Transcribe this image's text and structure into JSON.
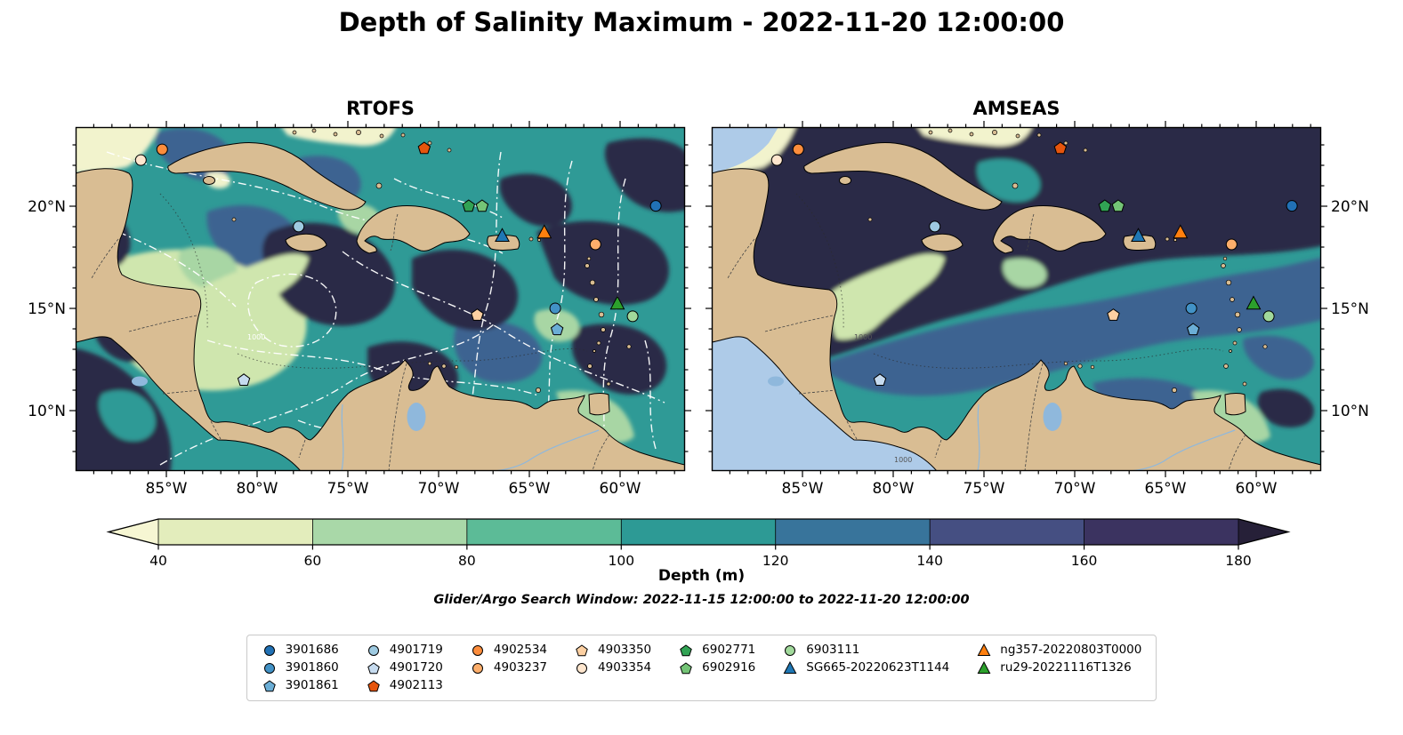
{
  "title": "Depth of Salinity Maximum - 2022-11-20 12:00:00",
  "subtitle": "Glider/Argo Search Window: 2022-11-15 12:00:00 to 2022-11-20 12:00:00",
  "panels": [
    {
      "title": "RTOFS"
    },
    {
      "title": "AMSEAS"
    }
  ],
  "axes": {
    "lon_tick_labels": [
      "85°W",
      "80°W",
      "75°W",
      "70°W",
      "65°W",
      "60°W"
    ],
    "lat_tick_labels": [
      "20°N",
      "15°N",
      "10°N"
    ]
  },
  "colorbar": {
    "label": "Depth (m)",
    "ticks": [
      "40",
      "60",
      "80",
      "100",
      "120",
      "140",
      "160",
      "180"
    ],
    "under_color": "#f6f6d3",
    "segment_colors": [
      "#e3edbc",
      "#a9d8a8",
      "#5cbb97",
      "#2d9a95",
      "#38749b",
      "#454f82",
      "#3b3360"
    ],
    "over_color": "#262038"
  },
  "contour_label": "1000",
  "legend": {
    "items": [
      {
        "label": "3901686",
        "shape": "circle",
        "color": "#2171b5"
      },
      {
        "label": "3901860",
        "shape": "circle",
        "color": "#4292c6"
      },
      {
        "label": "3901861",
        "shape": "pentagon",
        "color": "#6baed6"
      },
      {
        "label": "4901719",
        "shape": "circle",
        "color": "#9ecae1"
      },
      {
        "label": "4901720",
        "shape": "pentagon",
        "color": "#c6dbef"
      },
      {
        "label": "4902113",
        "shape": "pentagon",
        "color": "#e6550d"
      },
      {
        "label": "4902534",
        "shape": "circle",
        "color": "#fd8d3c"
      },
      {
        "label": "4903237",
        "shape": "circle",
        "color": "#fdae6b"
      },
      {
        "label": "4903350",
        "shape": "pentagon",
        "color": "#fdd0a2"
      },
      {
        "label": "4903354",
        "shape": "circle",
        "color": "#fee6ce"
      },
      {
        "label": "6902771",
        "shape": "pentagon",
        "color": "#31a354"
      },
      {
        "label": "6902916",
        "shape": "pentagon",
        "color": "#74c476"
      },
      {
        "label": "6903111",
        "shape": "circle",
        "color": "#a1d99b"
      },
      {
        "label": "SG665-20220623T1144",
        "shape": "triangle",
        "color": "#1f77b4"
      },
      {
        "label": "ng357-20220803T0000",
        "shape": "triangle",
        "color": "#ff7f0e"
      },
      {
        "label": "ru29-20221116T1326",
        "shape": "triangle",
        "color": "#2ca02c"
      }
    ],
    "column_layout": [
      [
        0,
        1,
        2
      ],
      [
        3,
        4,
        5
      ],
      [
        6,
        7
      ],
      [
        8,
        9
      ],
      [
        10,
        11
      ],
      [
        12,
        13
      ],
      [
        14,
        15
      ]
    ]
  },
  "markers": [
    {
      "id": "4903354",
      "fx": 0.107,
      "fy": 0.096
    },
    {
      "id": "4902534",
      "fx": 0.142,
      "fy": 0.065
    },
    {
      "id": "4902113",
      "fx": 0.572,
      "fy": 0.062
    },
    {
      "id": "6902771",
      "fx": 0.645,
      "fy": 0.23
    },
    {
      "id": "6902916",
      "fx": 0.667,
      "fy": 0.23
    },
    {
      "id": "3901686",
      "fx": 0.952,
      "fy": 0.229
    },
    {
      "id": "4901719",
      "fx": 0.366,
      "fy": 0.289
    },
    {
      "id": "SG665-20220623T1144",
      "fx": 0.7,
      "fy": 0.316
    },
    {
      "id": "ng357-20220803T0000",
      "fx": 0.769,
      "fy": 0.306
    },
    {
      "id": "4903237",
      "fx": 0.853,
      "fy": 0.341
    },
    {
      "id": "4903350",
      "fx": 0.659,
      "fy": 0.547
    },
    {
      "id": "3901860",
      "fx": 0.787,
      "fy": 0.527
    },
    {
      "id": "3901861",
      "fx": 0.79,
      "fy": 0.589
    },
    {
      "id": "ru29-20221116T1326",
      "fx": 0.889,
      "fy": 0.513
    },
    {
      "id": "6903111",
      "fx": 0.914,
      "fy": 0.55
    },
    {
      "id": "4901720",
      "fx": 0.276,
      "fy": 0.736
    }
  ],
  "chart_data": {
    "type": "heatmap",
    "title": "Depth of Salinity Maximum - 2022-11-20 12:00:00",
    "panels": [
      "RTOFS",
      "AMSEAS"
    ],
    "variable": "Depth (m)",
    "colorbar_ticks": [
      40,
      60,
      80,
      100,
      120,
      140,
      160,
      180
    ],
    "colorbar_extend": "both",
    "axes": {
      "lon_ticks_deg_w": [
        85,
        80,
        75,
        70,
        65,
        60
      ],
      "lat_ticks_deg_n": [
        20,
        15,
        10
      ],
      "lon_range_deg_w": [
        90,
        56.4
      ],
      "lat_range_deg_n": [
        7.0,
        23.9
      ]
    },
    "search_window": "2022-11-15 12:00:00 to 2022-11-20 12:00:00",
    "platforms": [
      {
        "id": "4903354",
        "lon_w": 86.4,
        "lat_n": 22.3
      },
      {
        "id": "4902534",
        "lon_w": 85.2,
        "lat_n": 22.8
      },
      {
        "id": "4902113",
        "lon_w": 70.8,
        "lat_n": 22.8
      },
      {
        "id": "6902771",
        "lon_w": 68.2,
        "lat_n": 20.0
      },
      {
        "id": "6902916",
        "lon_w": 67.5,
        "lat_n": 20.0
      },
      {
        "id": "3901686",
        "lon_w": 58.0,
        "lat_n": 20.0
      },
      {
        "id": "4901719",
        "lon_w": 77.7,
        "lat_n": 19.0
      },
      {
        "id": "SG665-20220623T1144",
        "lon_w": 66.5,
        "lat_n": 18.6
      },
      {
        "id": "ng357-20220803T0000",
        "lon_w": 64.2,
        "lat_n": 18.7
      },
      {
        "id": "4903237",
        "lon_w": 61.4,
        "lat_n": 18.1
      },
      {
        "id": "4903350",
        "lon_w": 67.9,
        "lat_n": 14.7
      },
      {
        "id": "3901860",
        "lon_w": 63.6,
        "lat_n": 15.0
      },
      {
        "id": "3901861",
        "lon_w": 63.5,
        "lat_n": 13.9
      },
      {
        "id": "ru29-20221116T1326",
        "lon_w": 60.1,
        "lat_n": 15.2
      },
      {
        "id": "6903111",
        "lon_w": 59.2,
        "lat_n": 14.6
      },
      {
        "id": "4901720",
        "lon_w": 80.7,
        "lat_n": 11.5
      }
    ]
  }
}
